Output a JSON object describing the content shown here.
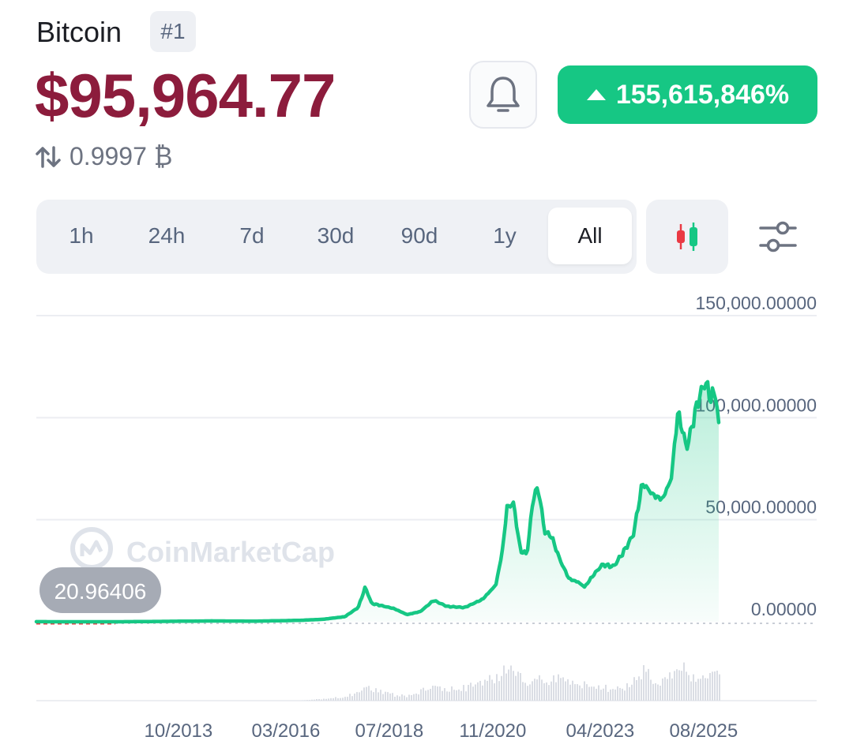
{
  "coin": {
    "name": "Bitcoin",
    "rank": "#1"
  },
  "price": {
    "value": "$95,964.77",
    "btc_value": "0.9997 ₿",
    "change": "155,615,846%"
  },
  "ranges": {
    "items": [
      "1h",
      "24h",
      "7d",
      "30d",
      "90d",
      "1y",
      "All"
    ],
    "selected": "All"
  },
  "icons": {
    "bell": "bell-icon",
    "up": "triangle-up-icon",
    "swap": "swap-vertical-icon",
    "candle": "candlestick-icon",
    "settings": "sliders-icon"
  },
  "colors": {
    "price": "#8c1c3c",
    "up": "#16c784",
    "down": "#ea3943",
    "badge_bg": "#16c784"
  },
  "watermark": "CoinMarketCap",
  "chart_data": {
    "type": "area",
    "start_label": "20.96406",
    "ylim": [
      0,
      150000
    ],
    "yticks": [
      0,
      50000,
      100000,
      150000
    ],
    "ytick_labels": [
      "0.00000",
      "50,000.00000",
      "100,000.00000",
      "150,000.00000"
    ],
    "xtick_labels": [
      "10/2013",
      "03/2016",
      "07/2018",
      "11/2020",
      "04/2023",
      "08/2025"
    ],
    "xtick_years": [
      2013.75,
      2016.17,
      2018.5,
      2020.83,
      2023.25,
      2025.58
    ],
    "x": [
      2010.55,
      2011.5,
      2012.5,
      2013.5,
      2014.5,
      2015.5,
      2016.5,
      2017.0,
      2017.5,
      2017.8,
      2017.96,
      2018.1,
      2018.3,
      2018.6,
      2018.9,
      2019.2,
      2019.5,
      2019.8,
      2020.2,
      2020.6,
      2020.9,
      2021.05,
      2021.15,
      2021.3,
      2021.45,
      2021.6,
      2021.75,
      2021.86,
      2022.0,
      2022.15,
      2022.35,
      2022.55,
      2022.75,
      2022.9,
      2023.1,
      2023.3,
      2023.55,
      2023.8,
      2024.0,
      2024.2,
      2024.45,
      2024.65,
      2024.85,
      2025.0,
      2025.2,
      2025.45,
      2025.62,
      2025.72,
      2025.85,
      2025.92
    ],
    "values": [
      20.96,
      15,
      12,
      200,
      400,
      300,
      700,
      1200,
      2500,
      7000,
      17000,
      9000,
      8000,
      6500,
      3500,
      5000,
      10500,
      7500,
      7000,
      11000,
      18000,
      35000,
      56000,
      58000,
      35000,
      33000,
      62000,
      65000,
      44000,
      42000,
      30000,
      21000,
      19500,
      17000,
      23000,
      28000,
      27000,
      35000,
      43000,
      68000,
      62000,
      60000,
      70000,
      103000,
      85000,
      108000,
      118000,
      110000,
      112000,
      96000
    ],
    "volume_note": "relative trading volume bars",
    "volume": [
      0,
      0,
      0,
      0,
      0,
      0,
      0,
      0.05,
      0.1,
      0.25,
      0.35,
      0.3,
      0.25,
      0.15,
      0.12,
      0.25,
      0.4,
      0.3,
      0.35,
      0.5,
      0.6,
      0.75,
      0.9,
      0.85,
      0.6,
      0.5,
      0.55,
      0.6,
      0.5,
      0.55,
      0.6,
      0.45,
      0.5,
      0.4,
      0.45,
      0.35,
      0.3,
      0.35,
      0.5,
      0.8,
      0.55,
      0.5,
      0.65,
      0.9,
      0.75,
      0.55,
      0.7,
      0.6,
      0.85,
      0.8
    ]
  }
}
